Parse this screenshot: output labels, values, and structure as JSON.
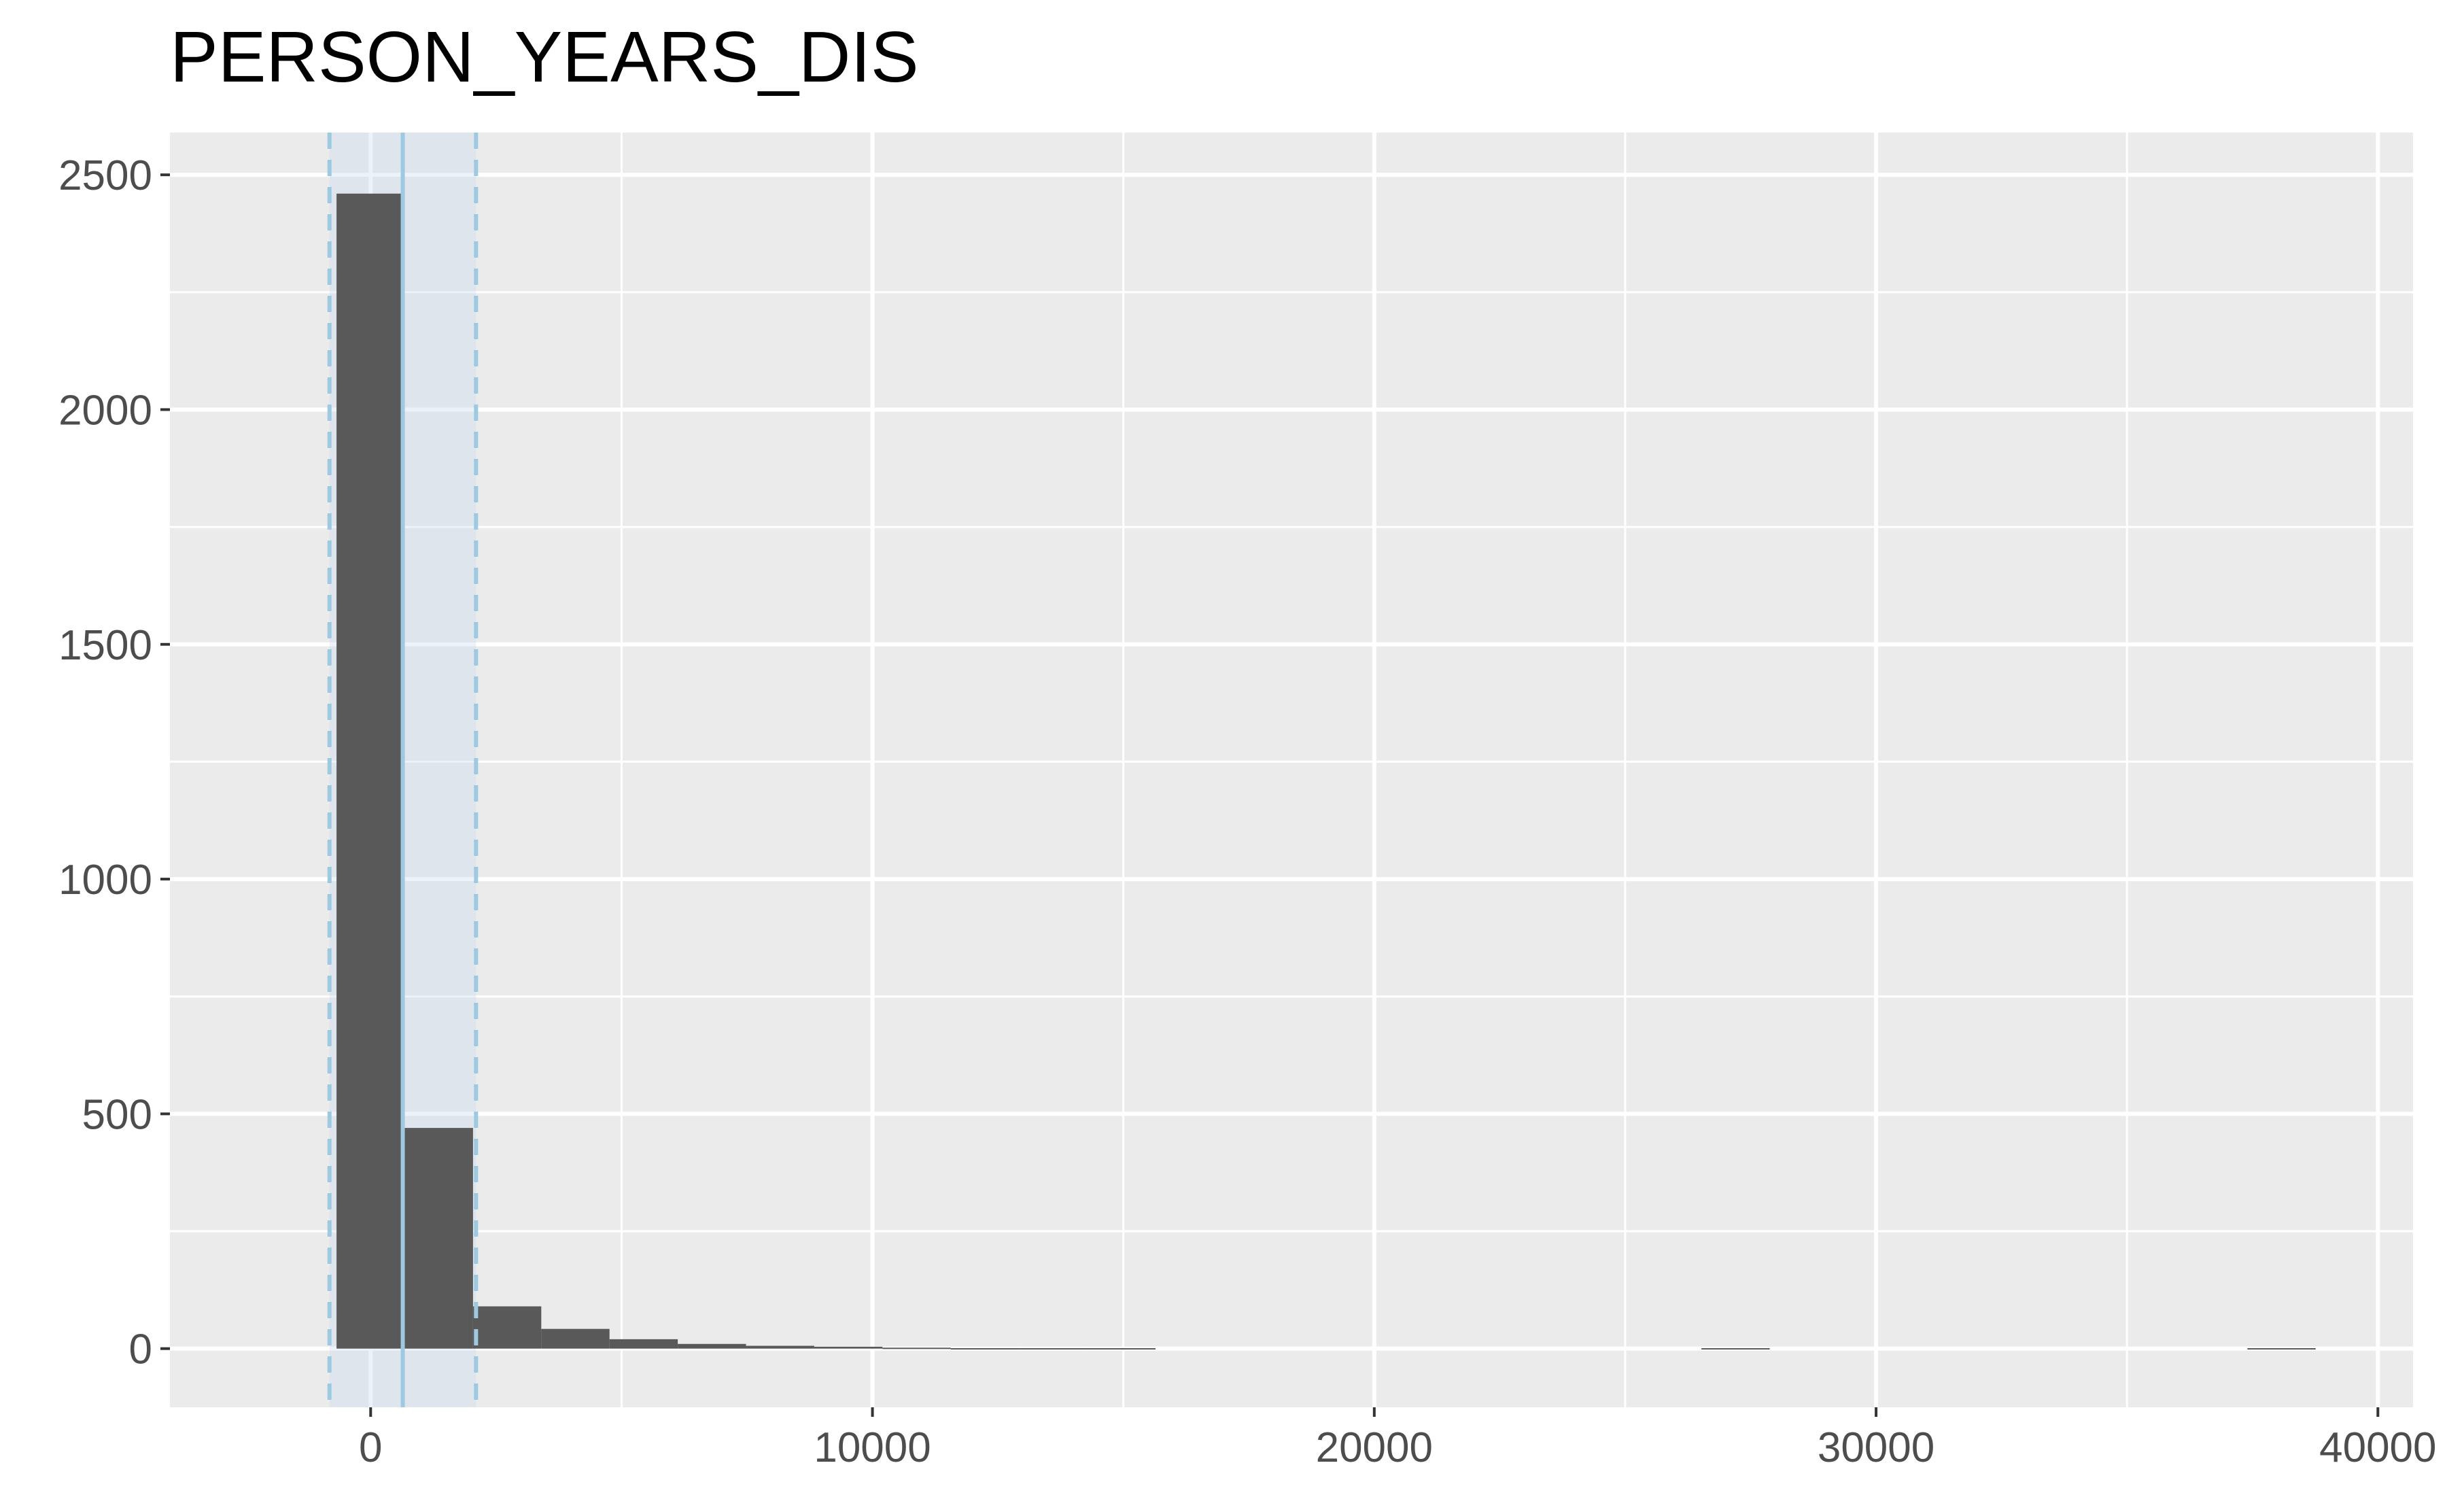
{
  "chart_data": {
    "type": "bar",
    "title": "PERSON_YEARS_DIS",
    "xlabel": "",
    "ylabel": "",
    "xlim": [
      -4000,
      40700
    ],
    "ylim": [
      -125,
      2590
    ],
    "x_ticks": [
      0,
      10000,
      20000,
      30000,
      40000
    ],
    "x_tick_labels": [
      "0",
      "10000",
      "20000",
      "30000",
      "40000"
    ],
    "y_ticks": [
      0,
      500,
      1000,
      1500,
      2000,
      2500
    ],
    "y_tick_labels": [
      "0",
      "500",
      "1000",
      "1500",
      "2000",
      "2500"
    ],
    "bin_width": 1360,
    "bins": [
      {
        "x0": -680,
        "x1": 680,
        "count": 2460
      },
      {
        "x0": 680,
        "x1": 2040,
        "count": 470
      },
      {
        "x0": 2040,
        "x1": 3400,
        "count": 90
      },
      {
        "x0": 3400,
        "x1": 4760,
        "count": 42
      },
      {
        "x0": 4760,
        "x1": 6120,
        "count": 20
      },
      {
        "x0": 6120,
        "x1": 7480,
        "count": 10
      },
      {
        "x0": 7480,
        "x1": 8840,
        "count": 6
      },
      {
        "x0": 8840,
        "x1": 10200,
        "count": 4
      },
      {
        "x0": 10200,
        "x1": 11560,
        "count": 2
      },
      {
        "x0": 11560,
        "x1": 12920,
        "count": 1
      },
      {
        "x0": 12920,
        "x1": 14280,
        "count": 1
      },
      {
        "x0": 14280,
        "x1": 15640,
        "count": 1
      },
      {
        "x0": 26520,
        "x1": 27880,
        "count": 1
      },
      {
        "x0": 37400,
        "x1": 38760,
        "count": 1
      }
    ],
    "reference_lines": {
      "mean": 640,
      "lower": -820,
      "upper": 2100
    },
    "grid": true,
    "legend": "none",
    "colors": {
      "panel": "#ebebeb",
      "grid": "#ffffff",
      "bar": "#595959",
      "band": "#c6dbef",
      "band_opacity": 0.35,
      "mean_line": "#9ecae1",
      "band_edge": "#9ecae1"
    }
  }
}
